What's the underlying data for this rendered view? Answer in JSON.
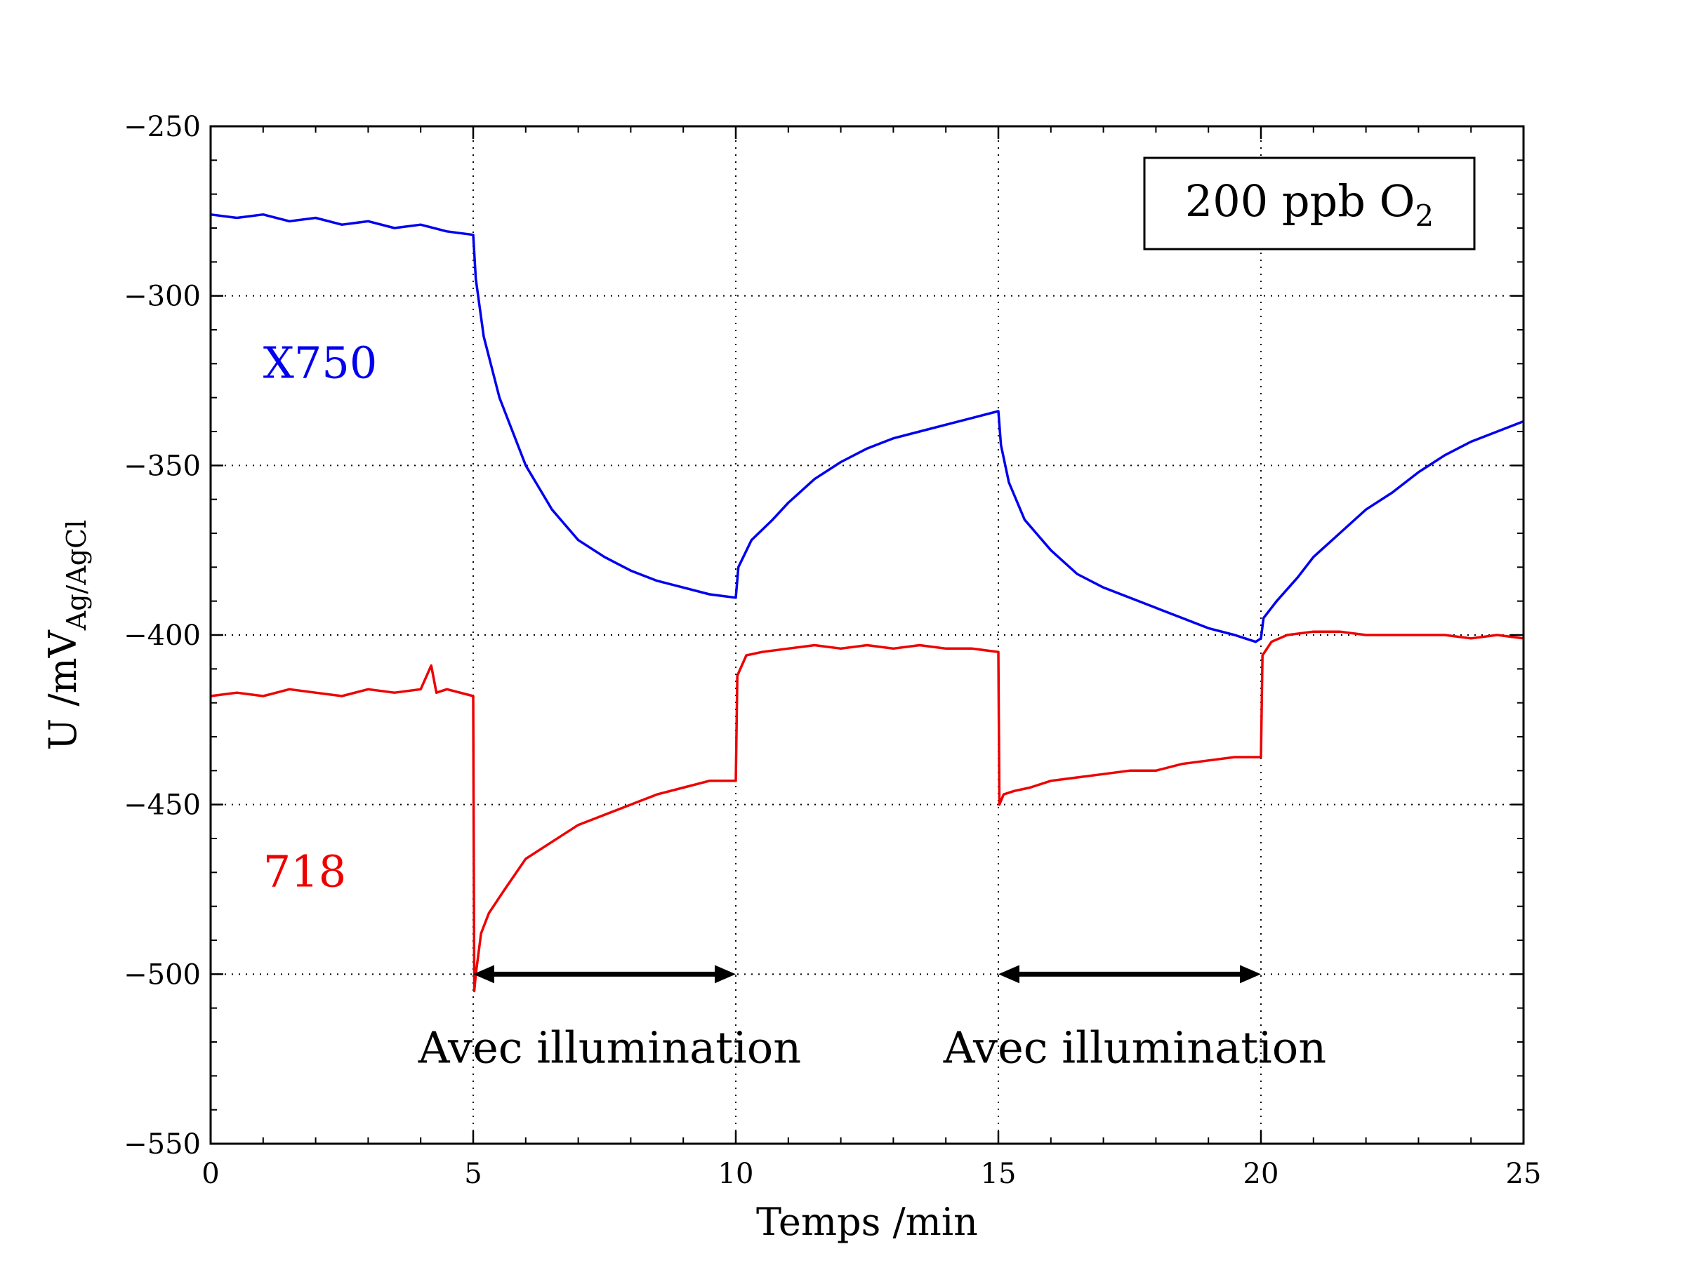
{
  "chart_data": {
    "type": "line",
    "xlabel": "Temps /min",
    "ylabel_main": "U /mV",
    "ylabel_sub": "Ag/AgCl",
    "xlim": [
      0,
      25
    ],
    "ylim": [
      -550,
      -250
    ],
    "x_ticks": [
      0,
      5,
      10,
      15,
      20,
      25
    ],
    "x_tick_labels": [
      "0",
      "5",
      "10",
      "15",
      "20",
      "25"
    ],
    "y_ticks": [
      -550,
      -500,
      -450,
      -400,
      -350,
      -300,
      -250
    ],
    "y_tick_labels": [
      "−550",
      "−500",
      "−450",
      "−400",
      "−350",
      "−300",
      "−250"
    ],
    "grid": true,
    "legend_box": {
      "text": "200 ppb O",
      "subscript": "2",
      "placement": "top-right"
    },
    "series": [
      {
        "name": "X750",
        "color": "#0000ee",
        "x": [
          0,
          0.5,
          1,
          1.5,
          2,
          2.5,
          3,
          3.5,
          4,
          4.5,
          5,
          5.05,
          5.2,
          5.5,
          6,
          6.5,
          7,
          7.5,
          8,
          8.5,
          9,
          9.5,
          10,
          10.05,
          10.3,
          10.7,
          11,
          11.5,
          12,
          12.5,
          13,
          13.5,
          14,
          14.5,
          15,
          15.05,
          15.2,
          15.5,
          16,
          16.5,
          17,
          17.5,
          18,
          18.5,
          19,
          19.5,
          19.9,
          20,
          20.05,
          20.3,
          20.7,
          21,
          21.5,
          22,
          22.5,
          23,
          23.5,
          24,
          24.5,
          25
        ],
        "y": [
          -276,
          -277,
          -276,
          -278,
          -277,
          -279,
          -278,
          -280,
          -279,
          -281,
          -282,
          -295,
          -312,
          -330,
          -350,
          -363,
          -372,
          -377,
          -381,
          -384,
          -386,
          -388,
          -389,
          -380,
          -372,
          -366,
          -361,
          -354,
          -349,
          -345,
          -342,
          -340,
          -338,
          -336,
          -334,
          -344,
          -355,
          -366,
          -375,
          -382,
          -386,
          -389,
          -392,
          -395,
          -398,
          -400,
          -402,
          -401,
          -395,
          -390,
          -383,
          -377,
          -370,
          -363,
          -358,
          -352,
          -347,
          -343,
          -340,
          -337
        ]
      },
      {
        "name": "718",
        "color": "#ee0000",
        "x": [
          0,
          0.5,
          1,
          1.5,
          2,
          2.5,
          3,
          3.5,
          4,
          4.2,
          4.3,
          4.5,
          5,
          5.02,
          5.05,
          5.15,
          5.3,
          5.6,
          6,
          6.5,
          7,
          7.5,
          8,
          8.5,
          9,
          9.5,
          10,
          10.03,
          10.2,
          10.5,
          11,
          11.5,
          12,
          12.5,
          13,
          13.5,
          14,
          14.5,
          15,
          15.02,
          15.1,
          15.3,
          15.6,
          16,
          16.5,
          17,
          17.5,
          18,
          18.5,
          19,
          19.5,
          20,
          20.03,
          20.2,
          20.5,
          21,
          21.5,
          22,
          22.5,
          23,
          23.5,
          24,
          24.5,
          25
        ],
        "y": [
          -418,
          -417,
          -418,
          -416,
          -417,
          -418,
          -416,
          -417,
          -416,
          -409,
          -417,
          -416,
          -418,
          -505,
          -500,
          -488,
          -482,
          -475,
          -466,
          -461,
          -456,
          -453,
          -450,
          -447,
          -445,
          -443,
          -443,
          -412,
          -406,
          -405,
          -404,
          -403,
          -404,
          -403,
          -404,
          -403,
          -404,
          -404,
          -405,
          -450,
          -447,
          -446,
          -445,
          -443,
          -442,
          -441,
          -440,
          -440,
          -438,
          -437,
          -436,
          -436,
          -406,
          -402,
          -400,
          -399,
          -399,
          -400,
          -400,
          -400,
          -400,
          -401,
          -400,
          -401
        ]
      }
    ],
    "annotations": [
      {
        "text": "X750",
        "color": "#0000ee",
        "x": 1,
        "y": -320
      },
      {
        "text": "718",
        "color": "#ee0000",
        "x": 1,
        "y": -470
      },
      {
        "text": "Avec illumination",
        "color": "#000000",
        "x": 7.6,
        "y": -522
      },
      {
        "text": "Avec illumination",
        "color": "#000000",
        "x": 17.6,
        "y": -522
      }
    ],
    "arrows": [
      {
        "x_start": 5,
        "x_end": 10,
        "y": -500
      },
      {
        "x_start": 15,
        "x_end": 20,
        "y": -500
      }
    ]
  }
}
